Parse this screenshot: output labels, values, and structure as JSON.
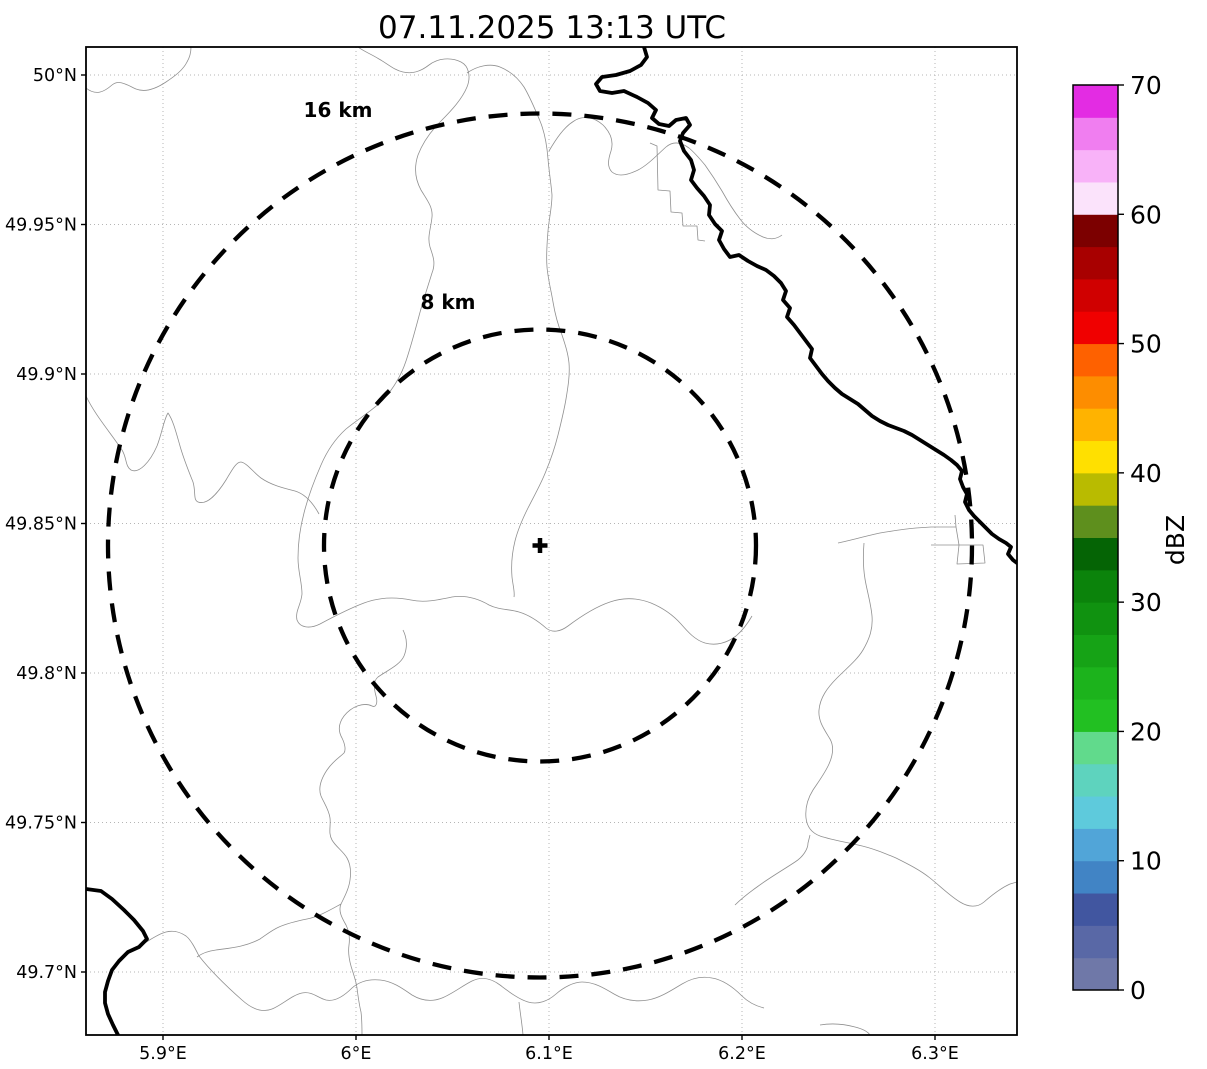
{
  "title": "07.11.2025 13:13 UTC",
  "map": {
    "x_axis": {
      "ticks": [
        {
          "label": "5.9°E",
          "lon": 5.9
        },
        {
          "label": "6°E",
          "lon": 6.0
        },
        {
          "label": "6.1°E",
          "lon": 6.1
        },
        {
          "label": "6.2°E",
          "lon": 6.2
        },
        {
          "label": "6.3°E",
          "lon": 6.3
        }
      ]
    },
    "y_axis": {
      "ticks": [
        {
          "label": "50°N",
          "lat": 50.0
        },
        {
          "label": "49.95°N",
          "lat": 49.95
        },
        {
          "label": "49.9°N",
          "lat": 49.9
        },
        {
          "label": "49.85°N",
          "lat": 49.85
        },
        {
          "label": "49.8°N",
          "lat": 49.8
        },
        {
          "label": "49.75°N",
          "lat": 49.75
        },
        {
          "label": "49.7°N",
          "lat": 49.7
        }
      ]
    },
    "range_rings": [
      {
        "label": "16 km",
        "radius_km": 16
      },
      {
        "label": "8 km",
        "radius_km": 8
      }
    ],
    "radar_site_marker": "+",
    "grid_color": "#b5b5b5",
    "border_color": "#000000",
    "boundary_color": "#909090"
  },
  "colorbar": {
    "label": "dBZ",
    "min": 0,
    "max": 70,
    "tick_values": [
      0,
      10,
      20,
      30,
      40,
      50,
      60,
      70
    ],
    "segment_step_dbz": 2.5,
    "colors_bottom_to_top": [
      "#6f78a8",
      "#5968a6",
      "#4156a0",
      "#4184c5",
      "#51a5d8",
      "#5ecadc",
      "#5ed3be",
      "#61da8c",
      "#22c022",
      "#1cb31c",
      "#16a316",
      "#109210",
      "#0b830b",
      "#056405",
      "#5e8f1d",
      "#b9bb00",
      "#ffe000",
      "#ffb300",
      "#fd8d00",
      "#fe6100",
      "#f00000",
      "#d00000",
      "#a80000",
      "#7c0000",
      "#fbe3fb",
      "#f8b2f8",
      "#f07ef0",
      "#e32ce3"
    ]
  },
  "chart_data": {
    "type": "map",
    "title": "07.11.2025 13:13 UTC",
    "xlabel": "",
    "ylabel": "",
    "x_tick_labels": [
      "5.9°E",
      "6°E",
      "6.1°E",
      "6.2°E",
      "6.3°E"
    ],
    "y_tick_labels": [
      "50°N",
      "49.95°N",
      "49.9°N",
      "49.85°N",
      "49.8°N",
      "49.75°N",
      "49.7°N"
    ],
    "xlim_deg_e": [
      5.86,
      6.343
    ],
    "ylim_deg_n": [
      49.679,
      50.009
    ],
    "radar_center_deg": {
      "lon": 6.096,
      "lat": 49.843
    },
    "range_rings_km": [
      8,
      16
    ],
    "colorbar_label": "dBZ",
    "colorbar_range": [
      0,
      70
    ],
    "grid": true,
    "reflectivity_echoes": "none visible"
  }
}
